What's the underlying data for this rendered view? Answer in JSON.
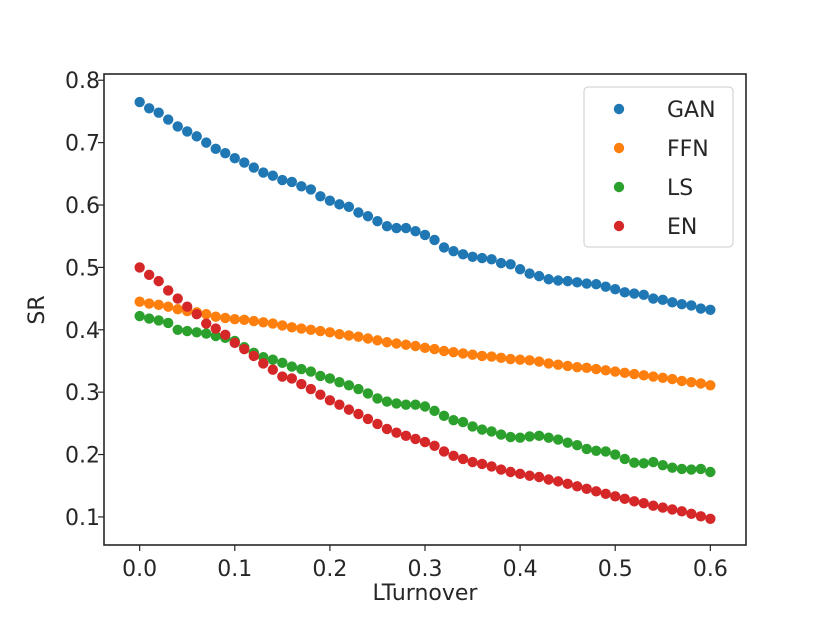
{
  "chart_data": {
    "type": "scatter",
    "title": "",
    "xlabel": "LTurnover",
    "ylabel": "SR",
    "xlim": [
      -0.0375,
      0.6375
    ],
    "ylim": [
      0.055,
      0.81
    ],
    "xticks": [
      0.0,
      0.1,
      0.2,
      0.3,
      0.4,
      0.5,
      0.6
    ],
    "xtick_labels": [
      "0.0",
      "0.1",
      "0.2",
      "0.3",
      "0.4",
      "0.5",
      "0.6"
    ],
    "yticks": [
      0.1,
      0.2,
      0.3,
      0.4,
      0.5,
      0.6,
      0.7,
      0.8
    ],
    "ytick_labels": [
      "0.1",
      "0.2",
      "0.3",
      "0.4",
      "0.5",
      "0.6",
      "0.7",
      "0.8"
    ],
    "grid": false,
    "legend_position": "top-right",
    "x": [
      0.0,
      0.01,
      0.02,
      0.03,
      0.04,
      0.05,
      0.06,
      0.07,
      0.08,
      0.09,
      0.1,
      0.11,
      0.12,
      0.13,
      0.14,
      0.15,
      0.16,
      0.17,
      0.18,
      0.19,
      0.2,
      0.21,
      0.22,
      0.23,
      0.24,
      0.25,
      0.26,
      0.27,
      0.28,
      0.29,
      0.3,
      0.31,
      0.32,
      0.33,
      0.34,
      0.35,
      0.36,
      0.37,
      0.38,
      0.39,
      0.4,
      0.41,
      0.42,
      0.43,
      0.44,
      0.45,
      0.46,
      0.47,
      0.48,
      0.49,
      0.5,
      0.51,
      0.52,
      0.53,
      0.54,
      0.55,
      0.56,
      0.57,
      0.58,
      0.59,
      0.6
    ],
    "series": [
      {
        "name": "GAN",
        "color": "#1f77b4",
        "values": [
          0.765,
          0.755,
          0.748,
          0.737,
          0.726,
          0.718,
          0.71,
          0.7,
          0.69,
          0.683,
          0.675,
          0.668,
          0.66,
          0.652,
          0.647,
          0.64,
          0.637,
          0.63,
          0.625,
          0.614,
          0.607,
          0.601,
          0.597,
          0.588,
          0.582,
          0.574,
          0.566,
          0.563,
          0.563,
          0.558,
          0.552,
          0.544,
          0.532,
          0.526,
          0.521,
          0.517,
          0.515,
          0.513,
          0.507,
          0.505,
          0.497,
          0.49,
          0.486,
          0.481,
          0.479,
          0.478,
          0.476,
          0.474,
          0.473,
          0.469,
          0.465,
          0.46,
          0.458,
          0.456,
          0.45,
          0.448,
          0.444,
          0.441,
          0.439,
          0.434,
          0.432
        ]
      },
      {
        "name": "FFN",
        "color": "#ff7f0e",
        "values": [
          0.445,
          0.442,
          0.44,
          0.437,
          0.433,
          0.43,
          0.428,
          0.425,
          0.421,
          0.419,
          0.417,
          0.416,
          0.414,
          0.412,
          0.41,
          0.407,
          0.404,
          0.402,
          0.4,
          0.398,
          0.396,
          0.393,
          0.391,
          0.389,
          0.386,
          0.383,
          0.38,
          0.378,
          0.376,
          0.374,
          0.371,
          0.369,
          0.366,
          0.364,
          0.362,
          0.36,
          0.358,
          0.357,
          0.355,
          0.353,
          0.352,
          0.351,
          0.349,
          0.346,
          0.344,
          0.342,
          0.34,
          0.339,
          0.337,
          0.335,
          0.333,
          0.331,
          0.329,
          0.327,
          0.325,
          0.323,
          0.321,
          0.318,
          0.316,
          0.314,
          0.311
        ]
      },
      {
        "name": "LS",
        "color": "#2ca02c",
        "values": [
          0.422,
          0.418,
          0.415,
          0.411,
          0.4,
          0.398,
          0.396,
          0.394,
          0.39,
          0.387,
          0.382,
          0.372,
          0.363,
          0.356,
          0.352,
          0.347,
          0.341,
          0.337,
          0.333,
          0.326,
          0.322,
          0.316,
          0.311,
          0.305,
          0.298,
          0.29,
          0.285,
          0.282,
          0.28,
          0.28,
          0.277,
          0.27,
          0.262,
          0.255,
          0.252,
          0.245,
          0.24,
          0.237,
          0.232,
          0.228,
          0.227,
          0.229,
          0.23,
          0.227,
          0.224,
          0.219,
          0.215,
          0.209,
          0.206,
          0.205,
          0.2,
          0.193,
          0.187,
          0.186,
          0.188,
          0.183,
          0.179,
          0.177,
          0.176,
          0.177,
          0.172
        ]
      },
      {
        "name": "EN",
        "color": "#d62728",
        "values": [
          0.5,
          0.488,
          0.478,
          0.463,
          0.45,
          0.437,
          0.425,
          0.41,
          0.402,
          0.392,
          0.379,
          0.369,
          0.358,
          0.346,
          0.336,
          0.325,
          0.322,
          0.313,
          0.305,
          0.296,
          0.287,
          0.28,
          0.272,
          0.265,
          0.257,
          0.249,
          0.241,
          0.235,
          0.23,
          0.225,
          0.22,
          0.214,
          0.205,
          0.198,
          0.193,
          0.188,
          0.185,
          0.181,
          0.176,
          0.172,
          0.169,
          0.166,
          0.164,
          0.16,
          0.157,
          0.153,
          0.149,
          0.145,
          0.141,
          0.137,
          0.133,
          0.129,
          0.125,
          0.122,
          0.118,
          0.115,
          0.112,
          0.109,
          0.105,
          0.101,
          0.097
        ]
      }
    ]
  }
}
